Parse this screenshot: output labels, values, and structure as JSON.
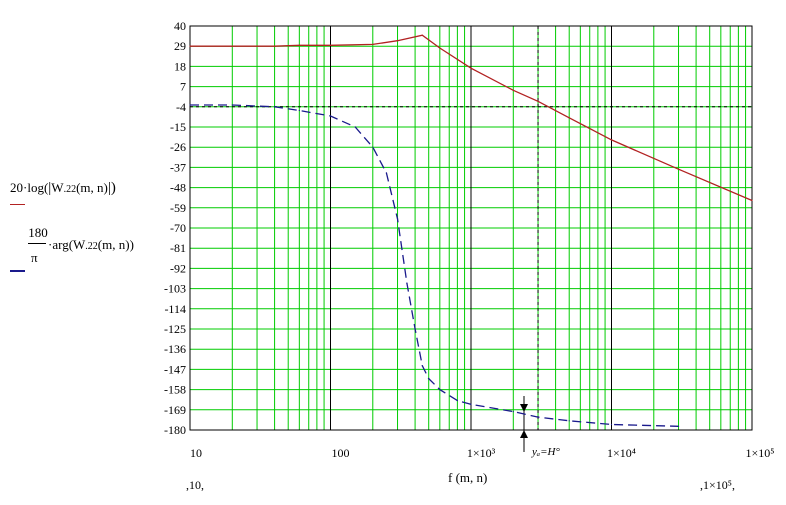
{
  "legend": {
    "expr1_prefix": "20·log(",
    "expr1_w": "W",
    "expr1_sub": ".22",
    "expr1_args": "(m, n)",
    "expr2_num": "180",
    "expr2_den": "π",
    "expr2_mid": "·arg(W",
    "expr2_sub": ".22",
    "expr2_args": "(m, n))"
  },
  "marker_label": "yₐ=H°",
  "xlabel": "f (m, n)",
  "xrange_min_label": ",10,",
  "xrange_max_label": ",1×10⁵,",
  "colors": {
    "grid": "#00cc00",
    "decade": "#000000",
    "magnitude": "#b22222",
    "phase": "#1a1a8c",
    "dotted": "#000000"
  },
  "chart_data": {
    "type": "line",
    "xscale": "log",
    "xlim": [
      10,
      100000
    ],
    "ylim": [
      -180,
      40
    ],
    "grid": true,
    "yticks": [
      40,
      29,
      18,
      7,
      -4,
      -15,
      -26,
      -37,
      -48,
      -59,
      -70,
      -81,
      -92,
      -103,
      -114,
      -125,
      -136,
      -147,
      -158,
      -169,
      -180
    ],
    "xticks": [
      {
        "value": 10,
        "label": "10"
      },
      {
        "value": 100,
        "label": "100"
      },
      {
        "value": 1000,
        "label": "1×10³"
      },
      {
        "value": 10000,
        "label": "1×10⁴"
      },
      {
        "value": 100000,
        "label": "1×10⁵"
      }
    ],
    "marker": {
      "x": 3000,
      "y": -4
    },
    "series": [
      {
        "key": "magnitude",
        "style": "solid",
        "x": [
          10,
          20,
          40,
          60,
          100,
          200,
          300,
          450,
          600,
          1000,
          2000,
          3000,
          5000,
          10000,
          30000,
          100000
        ],
        "y": [
          29,
          29,
          29,
          29.5,
          29.5,
          30,
          32,
          35,
          28,
          17,
          5,
          -1,
          -10,
          -22,
          -38,
          -55
        ]
      },
      {
        "key": "phase",
        "style": "dashed",
        "x": [
          10,
          20,
          40,
          60,
          100,
          150,
          200,
          250,
          300,
          350,
          400,
          450,
          500,
          600,
          800,
          1000,
          2000,
          3000,
          5000,
          10000,
          30000
        ],
        "y": [
          -3,
          -3,
          -4,
          -6,
          -9,
          -15,
          -26,
          -40,
          -65,
          -100,
          -125,
          -145,
          -152,
          -158,
          -164,
          -166,
          -170,
          -173,
          -175,
          -177,
          -178
        ]
      }
    ]
  }
}
